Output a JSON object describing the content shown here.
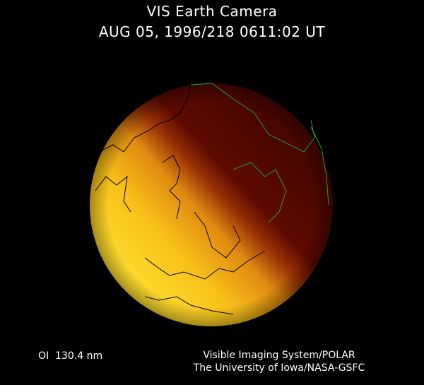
{
  "header": {
    "title": "VIS Earth Camera",
    "timestamp": "AUG 05, 1996/218 0611:02 UT"
  },
  "image": {
    "subject": "Earth globe in far-ultraviolet",
    "colors": {
      "bright": "#f8d41c",
      "mid": "#d07010",
      "dark": "#5a0800",
      "coastline_day": "#000000",
      "coastline_night": "#2aa02a"
    }
  },
  "footer": {
    "wavelength": "OI  130.4 nm",
    "credit_line1": "Visible Imaging System/POLAR",
    "credit_line2": "The University of Iowa/NASA-GSFC"
  }
}
